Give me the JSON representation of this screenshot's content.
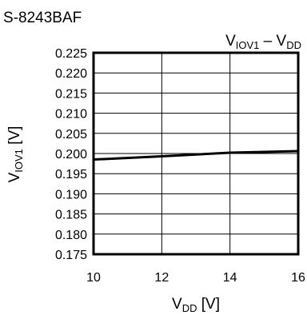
{
  "chart_data": {
    "type": "line",
    "title": "S-8243BAF",
    "subtitle": {
      "main": "V",
      "sub": "IOV1",
      "sep": " – ",
      "main2": "V",
      "sub2": "DD"
    },
    "xlabel": {
      "main": "V",
      "sub": "DD",
      "unit": " [V]"
    },
    "ylabel": {
      "main": "V",
      "sub": "IOV1",
      "unit": " [V]"
    },
    "xlim": [
      10,
      16
    ],
    "ylim": [
      0.175,
      0.225
    ],
    "x_ticks": [
      10,
      12,
      14,
      16
    ],
    "x_tick_labels": [
      "10",
      "12",
      "14",
      "16"
    ],
    "y_ticks": [
      0.175,
      0.18,
      0.185,
      0.19,
      0.195,
      0.2,
      0.205,
      0.21,
      0.215,
      0.22,
      0.225
    ],
    "y_tick_labels": [
      "0.175",
      "0.180",
      "0.185",
      "0.190",
      "0.195",
      "0.200",
      "0.205",
      "0.210",
      "0.215",
      "0.220",
      "0.225"
    ],
    "grid": true,
    "series": [
      {
        "x": [
          10,
          12,
          14,
          16
        ],
        "y": [
          0.1985,
          0.1993,
          0.2002,
          0.2006
        ],
        "color": "#000000"
      }
    ]
  }
}
